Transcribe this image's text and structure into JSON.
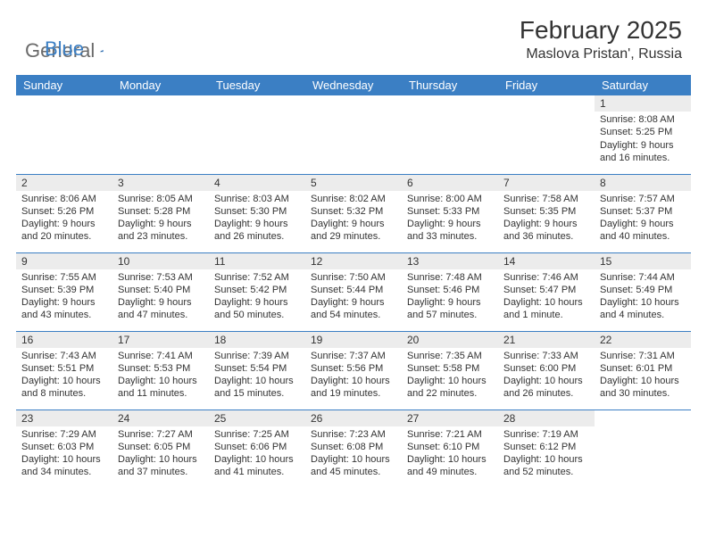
{
  "brand": {
    "part1": "General",
    "part2": "Blue"
  },
  "title": "February 2025",
  "location": "Maslova Pristan', Russia",
  "colors": {
    "header_bg": "#3b7fc4",
    "header_text": "#ffffff",
    "daynum_bg": "#ececec",
    "border": "#3b7fc4",
    "logo_gray": "#6a6a6a",
    "logo_blue": "#3b7fc4"
  },
  "weekdays": [
    "Sunday",
    "Monday",
    "Tuesday",
    "Wednesday",
    "Thursday",
    "Friday",
    "Saturday"
  ],
  "weeks": [
    [
      null,
      null,
      null,
      null,
      null,
      null,
      {
        "n": "1",
        "sr": "Sunrise: 8:08 AM",
        "ss": "Sunset: 5:25 PM",
        "d1": "Daylight: 9 hours",
        "d2": "and 16 minutes."
      }
    ],
    [
      {
        "n": "2",
        "sr": "Sunrise: 8:06 AM",
        "ss": "Sunset: 5:26 PM",
        "d1": "Daylight: 9 hours",
        "d2": "and 20 minutes."
      },
      {
        "n": "3",
        "sr": "Sunrise: 8:05 AM",
        "ss": "Sunset: 5:28 PM",
        "d1": "Daylight: 9 hours",
        "d2": "and 23 minutes."
      },
      {
        "n": "4",
        "sr": "Sunrise: 8:03 AM",
        "ss": "Sunset: 5:30 PM",
        "d1": "Daylight: 9 hours",
        "d2": "and 26 minutes."
      },
      {
        "n": "5",
        "sr": "Sunrise: 8:02 AM",
        "ss": "Sunset: 5:32 PM",
        "d1": "Daylight: 9 hours",
        "d2": "and 29 minutes."
      },
      {
        "n": "6",
        "sr": "Sunrise: 8:00 AM",
        "ss": "Sunset: 5:33 PM",
        "d1": "Daylight: 9 hours",
        "d2": "and 33 minutes."
      },
      {
        "n": "7",
        "sr": "Sunrise: 7:58 AM",
        "ss": "Sunset: 5:35 PM",
        "d1": "Daylight: 9 hours",
        "d2": "and 36 minutes."
      },
      {
        "n": "8",
        "sr": "Sunrise: 7:57 AM",
        "ss": "Sunset: 5:37 PM",
        "d1": "Daylight: 9 hours",
        "d2": "and 40 minutes."
      }
    ],
    [
      {
        "n": "9",
        "sr": "Sunrise: 7:55 AM",
        "ss": "Sunset: 5:39 PM",
        "d1": "Daylight: 9 hours",
        "d2": "and 43 minutes."
      },
      {
        "n": "10",
        "sr": "Sunrise: 7:53 AM",
        "ss": "Sunset: 5:40 PM",
        "d1": "Daylight: 9 hours",
        "d2": "and 47 minutes."
      },
      {
        "n": "11",
        "sr": "Sunrise: 7:52 AM",
        "ss": "Sunset: 5:42 PM",
        "d1": "Daylight: 9 hours",
        "d2": "and 50 minutes."
      },
      {
        "n": "12",
        "sr": "Sunrise: 7:50 AM",
        "ss": "Sunset: 5:44 PM",
        "d1": "Daylight: 9 hours",
        "d2": "and 54 minutes."
      },
      {
        "n": "13",
        "sr": "Sunrise: 7:48 AM",
        "ss": "Sunset: 5:46 PM",
        "d1": "Daylight: 9 hours",
        "d2": "and 57 minutes."
      },
      {
        "n": "14",
        "sr": "Sunrise: 7:46 AM",
        "ss": "Sunset: 5:47 PM",
        "d1": "Daylight: 10 hours",
        "d2": "and 1 minute."
      },
      {
        "n": "15",
        "sr": "Sunrise: 7:44 AM",
        "ss": "Sunset: 5:49 PM",
        "d1": "Daylight: 10 hours",
        "d2": "and 4 minutes."
      }
    ],
    [
      {
        "n": "16",
        "sr": "Sunrise: 7:43 AM",
        "ss": "Sunset: 5:51 PM",
        "d1": "Daylight: 10 hours",
        "d2": "and 8 minutes."
      },
      {
        "n": "17",
        "sr": "Sunrise: 7:41 AM",
        "ss": "Sunset: 5:53 PM",
        "d1": "Daylight: 10 hours",
        "d2": "and 11 minutes."
      },
      {
        "n": "18",
        "sr": "Sunrise: 7:39 AM",
        "ss": "Sunset: 5:54 PM",
        "d1": "Daylight: 10 hours",
        "d2": "and 15 minutes."
      },
      {
        "n": "19",
        "sr": "Sunrise: 7:37 AM",
        "ss": "Sunset: 5:56 PM",
        "d1": "Daylight: 10 hours",
        "d2": "and 19 minutes."
      },
      {
        "n": "20",
        "sr": "Sunrise: 7:35 AM",
        "ss": "Sunset: 5:58 PM",
        "d1": "Daylight: 10 hours",
        "d2": "and 22 minutes."
      },
      {
        "n": "21",
        "sr": "Sunrise: 7:33 AM",
        "ss": "Sunset: 6:00 PM",
        "d1": "Daylight: 10 hours",
        "d2": "and 26 minutes."
      },
      {
        "n": "22",
        "sr": "Sunrise: 7:31 AM",
        "ss": "Sunset: 6:01 PM",
        "d1": "Daylight: 10 hours",
        "d2": "and 30 minutes."
      }
    ],
    [
      {
        "n": "23",
        "sr": "Sunrise: 7:29 AM",
        "ss": "Sunset: 6:03 PM",
        "d1": "Daylight: 10 hours",
        "d2": "and 34 minutes."
      },
      {
        "n": "24",
        "sr": "Sunrise: 7:27 AM",
        "ss": "Sunset: 6:05 PM",
        "d1": "Daylight: 10 hours",
        "d2": "and 37 minutes."
      },
      {
        "n": "25",
        "sr": "Sunrise: 7:25 AM",
        "ss": "Sunset: 6:06 PM",
        "d1": "Daylight: 10 hours",
        "d2": "and 41 minutes."
      },
      {
        "n": "26",
        "sr": "Sunrise: 7:23 AM",
        "ss": "Sunset: 6:08 PM",
        "d1": "Daylight: 10 hours",
        "d2": "and 45 minutes."
      },
      {
        "n": "27",
        "sr": "Sunrise: 7:21 AM",
        "ss": "Sunset: 6:10 PM",
        "d1": "Daylight: 10 hours",
        "d2": "and 49 minutes."
      },
      {
        "n": "28",
        "sr": "Sunrise: 7:19 AM",
        "ss": "Sunset: 6:12 PM",
        "d1": "Daylight: 10 hours",
        "d2": "and 52 minutes."
      },
      null
    ]
  ]
}
